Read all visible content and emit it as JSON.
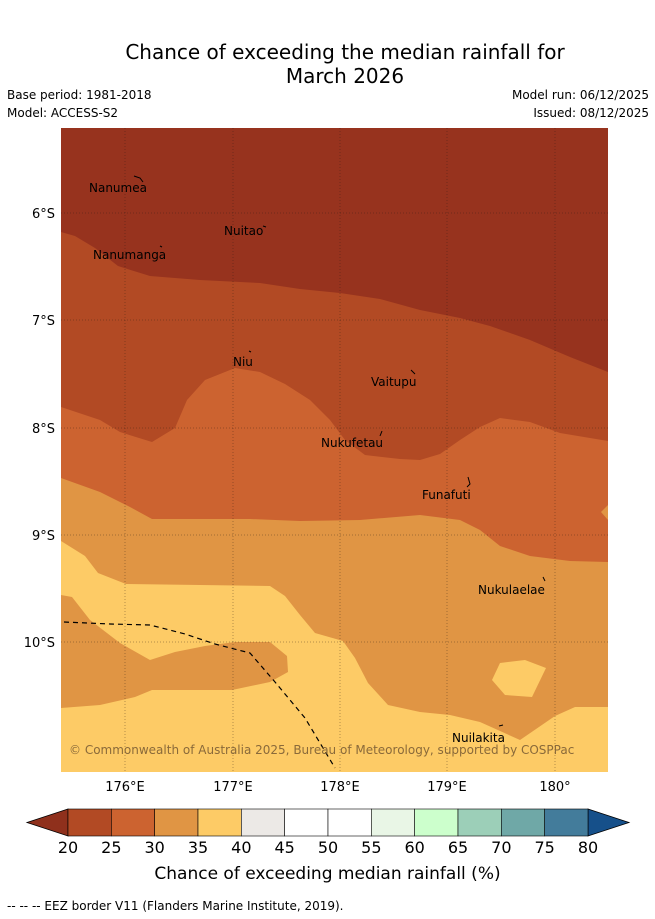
{
  "title": {
    "line1": "Chance of exceeding the median rainfall for",
    "line2": "March 2026"
  },
  "meta": {
    "base_period": "Base period: 1981-2018",
    "model": "Model: ACCESS-S2",
    "model_run": "Model run: 06/12/2025",
    "issued": "Issued: 08/12/2025"
  },
  "map": {
    "lat_labels": [
      "6°S",
      "7°S",
      "8°S",
      "9°S",
      "10°S"
    ],
    "lon_labels": [
      "176°E",
      "177°E",
      "178°E",
      "179°E",
      "180°"
    ],
    "places": [
      {
        "name": "Nanumea"
      },
      {
        "name": "Nuitao"
      },
      {
        "name": "Nanumanga"
      },
      {
        "name": "Niu"
      },
      {
        "name": "Vaitupu"
      },
      {
        "name": "Nukufetau"
      },
      {
        "name": "Funafuti"
      },
      {
        "name": "Nukulaelae"
      },
      {
        "name": "Nuilakita"
      }
    ],
    "copyright": "© Commonwealth of Australia 2025, Bureau of Meteorology, supported by COSPPac"
  },
  "colorbar": {
    "ticks": [
      "20",
      "25",
      "30",
      "35",
      "40",
      "45",
      "50",
      "55",
      "60",
      "65",
      "70",
      "75",
      "80"
    ],
    "colors": [
      "#b24a24",
      "#cc6330",
      "#e09544",
      "#fdcb66",
      "#ece9e6",
      "#ffffff",
      "#ffffff",
      "#e9f6e6",
      "#ccffcc",
      "#9ccfb8",
      "#6fa8a7",
      "#437c9b"
    ],
    "under_color": "#8f301c",
    "over_color": "#16508a",
    "label": "Chance of exceeding median rainfall (%)"
  },
  "footer": "--  --  -- EEZ border V11 (Flanders Marine Institute, 2019)."
}
